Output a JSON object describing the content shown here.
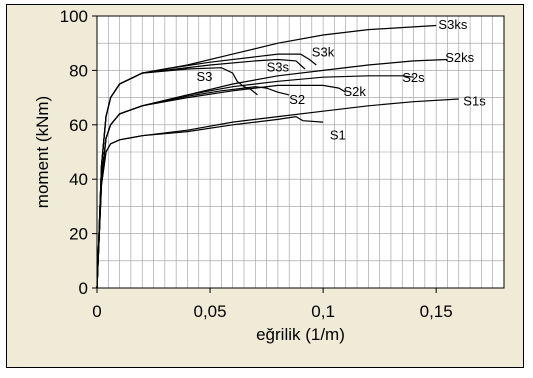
{
  "chart_data": {
    "type": "line",
    "xlabel": "eğrilik (1/m)",
    "ylabel": "moment (kNm)",
    "xlim": [
      0,
      0.18
    ],
    "ylim": [
      0,
      100
    ],
    "x_ticks": [
      0,
      0.05,
      0.1,
      0.15
    ],
    "x_tick_labels": [
      "0",
      "0,05",
      "0,1",
      "0,15"
    ],
    "y_ticks": [
      0,
      20,
      40,
      60,
      80,
      100
    ],
    "y_tick_labels": [
      "0",
      "20",
      "40",
      "60",
      "80",
      "100"
    ],
    "x_minor_step": 0.005,
    "y_major_step": 10,
    "grid": true,
    "plot_background": "#ffffff",
    "frame_background": "#efebd6",
    "line_color": "#000000",
    "series": [
      {
        "name": "S3ks",
        "points": [
          [
            0,
            0
          ],
          [
            0.002,
            45
          ],
          [
            0.004,
            63
          ],
          [
            0.006,
            70
          ],
          [
            0.01,
            75
          ],
          [
            0.02,
            79
          ],
          [
            0.04,
            82
          ],
          [
            0.06,
            86
          ],
          [
            0.08,
            90
          ],
          [
            0.1,
            93
          ],
          [
            0.12,
            95
          ],
          [
            0.14,
            96
          ],
          [
            0.15,
            96.5
          ]
        ],
        "label_at": [
          0.151,
          97
        ]
      },
      {
        "name": "S3k",
        "points": [
          [
            0,
            0
          ],
          [
            0.002,
            45
          ],
          [
            0.004,
            63
          ],
          [
            0.006,
            70
          ],
          [
            0.01,
            75
          ],
          [
            0.02,
            79
          ],
          [
            0.03,
            80.5
          ],
          [
            0.05,
            83
          ],
          [
            0.07,
            85
          ],
          [
            0.08,
            86
          ],
          [
            0.09,
            86
          ],
          [
            0.094,
            84
          ],
          [
            0.097,
            82
          ]
        ],
        "label_at": [
          0.095,
          87
        ]
      },
      {
        "name": "S3s",
        "points": [
          [
            0,
            0
          ],
          [
            0.002,
            45
          ],
          [
            0.004,
            63
          ],
          [
            0.006,
            70
          ],
          [
            0.01,
            75
          ],
          [
            0.02,
            79
          ],
          [
            0.03,
            80
          ],
          [
            0.05,
            82
          ],
          [
            0.07,
            83.5
          ],
          [
            0.08,
            84
          ],
          [
            0.088,
            83.5
          ],
          [
            0.09,
            82
          ],
          [
            0.092,
            80.5
          ]
        ],
        "label_at": [
          0.075,
          81.5
        ]
      },
      {
        "name": "S3",
        "points": [
          [
            0,
            0
          ],
          [
            0.002,
            45
          ],
          [
            0.004,
            63
          ],
          [
            0.006,
            70
          ],
          [
            0.01,
            75
          ],
          [
            0.02,
            79
          ],
          [
            0.04,
            80.5
          ],
          [
            0.055,
            81
          ],
          [
            0.06,
            79
          ],
          [
            0.062,
            76
          ],
          [
            0.065,
            74
          ],
          [
            0.068,
            73
          ],
          [
            0.071,
            71
          ]
        ],
        "label_at": [
          0.044,
          78
        ]
      },
      {
        "name": "S2ks",
        "points": [
          [
            0,
            0
          ],
          [
            0.002,
            40
          ],
          [
            0.004,
            55
          ],
          [
            0.006,
            60
          ],
          [
            0.01,
            64
          ],
          [
            0.02,
            67
          ],
          [
            0.04,
            71
          ],
          [
            0.06,
            75
          ],
          [
            0.08,
            78
          ],
          [
            0.1,
            80
          ],
          [
            0.12,
            82
          ],
          [
            0.14,
            83.5
          ],
          [
            0.155,
            84
          ]
        ],
        "label_at": [
          0.154,
          85
        ]
      },
      {
        "name": "S2s",
        "points": [
          [
            0,
            0
          ],
          [
            0.002,
            40
          ],
          [
            0.004,
            55
          ],
          [
            0.006,
            60
          ],
          [
            0.01,
            64
          ],
          [
            0.02,
            67
          ],
          [
            0.04,
            71
          ],
          [
            0.06,
            74
          ],
          [
            0.08,
            76
          ],
          [
            0.1,
            77.5
          ],
          [
            0.12,
            78
          ],
          [
            0.135,
            78
          ],
          [
            0.14,
            77.5
          ]
        ],
        "label_at": [
          0.135,
          77.5
        ]
      },
      {
        "name": "S2k",
        "points": [
          [
            0,
            0
          ],
          [
            0.002,
            40
          ],
          [
            0.004,
            55
          ],
          [
            0.006,
            60
          ],
          [
            0.01,
            64
          ],
          [
            0.02,
            67
          ],
          [
            0.04,
            70
          ],
          [
            0.06,
            72.5
          ],
          [
            0.08,
            74.5
          ],
          [
            0.1,
            74.5
          ],
          [
            0.107,
            73.5
          ],
          [
            0.11,
            72
          ]
        ],
        "label_at": [
          0.109,
          72.5
        ]
      },
      {
        "name": "S2",
        "points": [
          [
            0,
            0
          ],
          [
            0.002,
            40
          ],
          [
            0.004,
            55
          ],
          [
            0.006,
            60
          ],
          [
            0.01,
            64
          ],
          [
            0.02,
            67
          ],
          [
            0.04,
            70.5
          ],
          [
            0.055,
            72.5
          ],
          [
            0.065,
            73.5
          ],
          [
            0.07,
            74
          ],
          [
            0.075,
            73.5
          ],
          [
            0.08,
            72
          ],
          [
            0.085,
            71
          ]
        ],
        "label_at": [
          0.085,
          69.5
        ]
      },
      {
        "name": "S1s",
        "points": [
          [
            0,
            0
          ],
          [
            0.002,
            38
          ],
          [
            0.004,
            50
          ],
          [
            0.006,
            53
          ],
          [
            0.01,
            54.5
          ],
          [
            0.02,
            56
          ],
          [
            0.04,
            58
          ],
          [
            0.06,
            61
          ],
          [
            0.08,
            63
          ],
          [
            0.1,
            65
          ],
          [
            0.12,
            67
          ],
          [
            0.14,
            68.5
          ],
          [
            0.16,
            69.5
          ]
        ],
        "label_at": [
          0.162,
          69
        ]
      },
      {
        "name": "S1",
        "points": [
          [
            0,
            0
          ],
          [
            0.002,
            38
          ],
          [
            0.004,
            50
          ],
          [
            0.006,
            53
          ],
          [
            0.01,
            54.5
          ],
          [
            0.02,
            56
          ],
          [
            0.04,
            57.5
          ],
          [
            0.06,
            60
          ],
          [
            0.07,
            61
          ],
          [
            0.08,
            62
          ],
          [
            0.088,
            63
          ],
          [
            0.091,
            61.5
          ],
          [
            0.1,
            61
          ]
        ],
        "label_at": [
          0.103,
          56.5
        ]
      }
    ]
  }
}
